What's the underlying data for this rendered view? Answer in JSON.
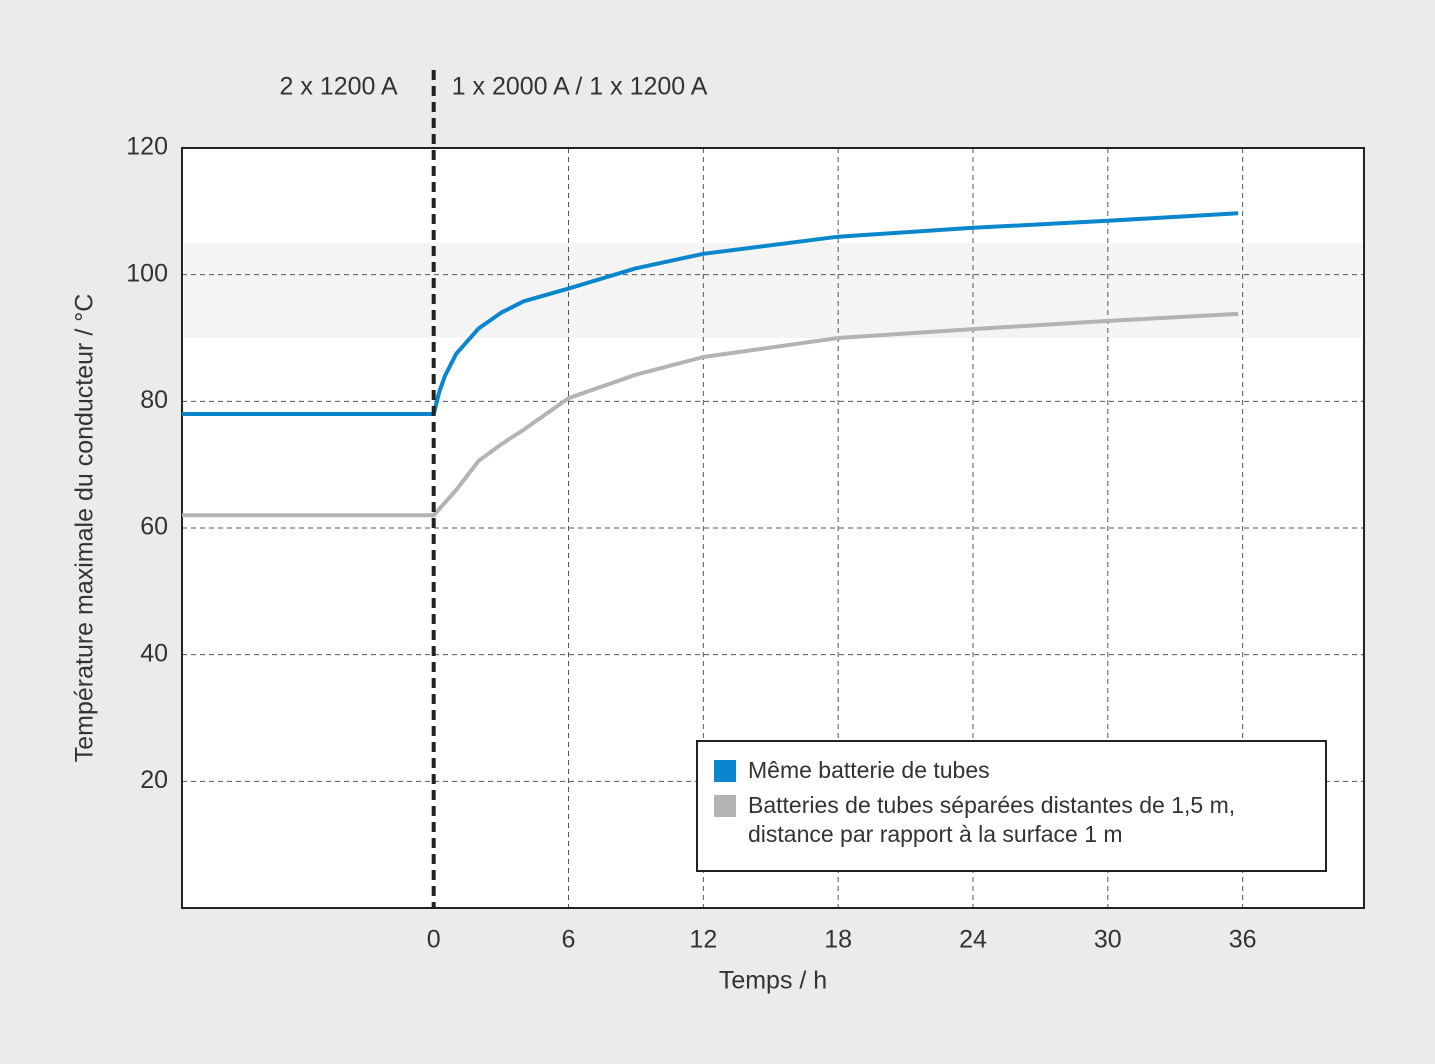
{
  "chart_data": {
    "type": "line",
    "xlabel": "Temps / h",
    "ylabel": "Température maximale du conducteur / °C",
    "annotations": [
      {
        "text": "2 x 1200 A",
        "side": "left"
      },
      {
        "text": "1 x 2000 A / 1 x 1200 A",
        "side": "right"
      }
    ],
    "phase_change_x": 0,
    "band": [
      90,
      105
    ],
    "x": [
      -11.2,
      0,
      0.25,
      0.5,
      1,
      2,
      3,
      4,
      6,
      9,
      12,
      18,
      24,
      30,
      35.8
    ],
    "series": [
      {
        "name": "Même batterie de tubes",
        "color": "#0a86cc",
        "values": [
          78,
          78,
          81.5,
          84,
          87.5,
          91.5,
          94,
          95.8,
          97.8,
          101,
          103.3,
          106,
          107.4,
          108.5,
          109.7
        ]
      },
      {
        "name": "Batteries de tubes séparées distantes de 1,5 m, distance par rapport à la surface 1 m",
        "color": "#b3b3b3",
        "values": [
          62,
          62,
          63,
          64,
          66,
          70.6,
          73.2,
          75.5,
          80.5,
          84.2,
          87,
          90,
          91.4,
          92.7,
          93.8
        ]
      }
    ],
    "xlim": [
      -11.2,
      41.4
    ],
    "ylim": [
      0,
      120
    ],
    "xticks": [
      0,
      6,
      12,
      18,
      24,
      30,
      36
    ],
    "yticks": [
      20,
      40,
      60,
      80,
      100,
      120
    ],
    "grid": true
  }
}
